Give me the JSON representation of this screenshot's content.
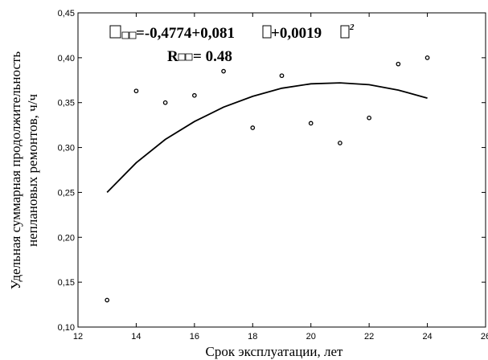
{
  "chart_data": {
    "type": "scatter",
    "xlabel": "Срок эксплуатации, лет",
    "ylabel_line1": "Удельная суммарная продолжительность",
    "ylabel_line2": "неплановых ремонтов, ч/ч",
    "xlim": [
      12,
      26
    ],
    "ylim": [
      0.1,
      0.45
    ],
    "x_ticks": [
      "12",
      "14",
      "16",
      "18",
      "20",
      "22",
      "24",
      "26"
    ],
    "y_ticks": [
      "0,10",
      "0,15",
      "0,20",
      "0,25",
      "0,30",
      "0,35",
      "0,40",
      "0,45"
    ],
    "grid": false,
    "points": [
      {
        "x": 13,
        "y": 0.13
      },
      {
        "x": 14,
        "y": 0.363
      },
      {
        "x": 15,
        "y": 0.35
      },
      {
        "x": 16,
        "y": 0.358
      },
      {
        "x": 17,
        "y": 0.385
      },
      {
        "x": 18,
        "y": 0.322
      },
      {
        "x": 19,
        "y": 0.38
      },
      {
        "x": 20,
        "y": 0.327
      },
      {
        "x": 21,
        "y": 0.305
      },
      {
        "x": 22,
        "y": 0.333
      },
      {
        "x": 23,
        "y": 0.393
      },
      {
        "x": 24,
        "y": 0.4
      }
    ],
    "fit_curve": {
      "x": [
        13,
        14,
        15,
        16,
        17,
        18,
        19,
        20,
        21,
        22,
        23,
        24
      ],
      "y": [
        0.25,
        0.283,
        0.309,
        0.329,
        0.345,
        0.357,
        0.366,
        0.371,
        0.372,
        0.37,
        0.364,
        0.355
      ]
    },
    "equation": {
      "lhs_suffix": "=-0,4774+0,081",
      "middle": "+0,0019",
      "sup": "2",
      "r_label": "R",
      "r_value": "= 0.48"
    }
  }
}
